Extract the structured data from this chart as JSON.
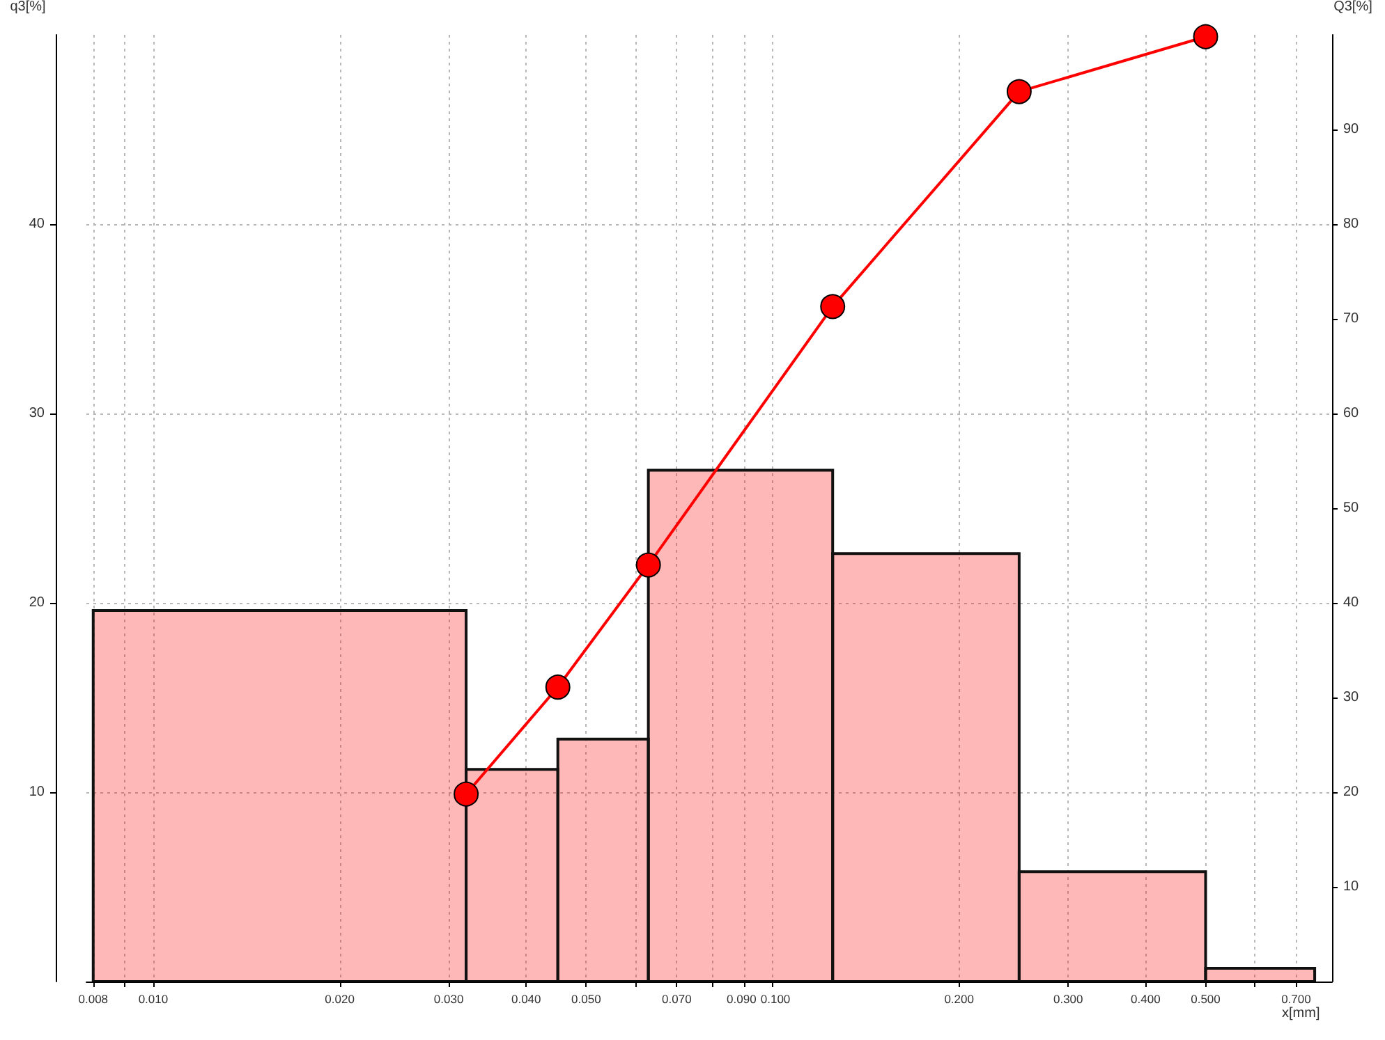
{
  "chart_data": {
    "type": "histogram",
    "xlabel": "x[mm]",
    "ylabel": "q3[%]",
    "y2label": "Q3[%]",
    "series": [
      {
        "type": "histogram",
        "color": "#ff0000",
        "bins": [
          0.008,
          0.032,
          0.045,
          0.063,
          0.125,
          0.25,
          0.5,
          0.75
        ],
        "values": [
          19.6,
          11.2,
          12.8,
          27.0,
          22.6,
          5.8,
          0.7
        ]
      },
      {
        "type": "line",
        "axis": "y2",
        "color": "#ff0000",
        "marker": "circle",
        "x": [
          0.032,
          0.045,
          0.063,
          0.125,
          0.25,
          0.5
        ],
        "values": [
          19.8,
          31.1,
          44.0,
          71.3,
          94.0,
          99.8
        ]
      }
    ],
    "log": "x",
    "xlim": [
      0.0078,
      0.8
    ],
    "xticks": [
      {
        "value": 0.008,
        "label": "0.008"
      },
      {
        "value": 0.009,
        "label": null
      },
      {
        "value": 0.01,
        "label": "0.010"
      },
      {
        "value": 0.02,
        "label": "0.020"
      },
      {
        "value": 0.03,
        "label": "0.030"
      },
      {
        "value": 0.04,
        "label": "0.040"
      },
      {
        "value": 0.05,
        "label": "0.050"
      },
      {
        "value": 0.06,
        "label": null
      },
      {
        "value": 0.07,
        "label": "0.070"
      },
      {
        "value": 0.08,
        "label": null
      },
      {
        "value": 0.09,
        "label": "0.090"
      },
      {
        "value": 0.1,
        "label": "0.100"
      },
      {
        "value": 0.2,
        "label": "0.200"
      },
      {
        "value": 0.3,
        "label": "0.300"
      },
      {
        "value": 0.4,
        "label": "0.400"
      },
      {
        "value": 0.5,
        "label": "0.500"
      },
      {
        "value": 0.6,
        "label": null
      },
      {
        "value": 0.7,
        "label": "0.700"
      }
    ],
    "ylim": [
      0,
      50
    ],
    "yticks": [
      10,
      20,
      30,
      40
    ],
    "y2lim": [
      0,
      100
    ],
    "y2ticks": [
      10,
      20,
      30,
      40,
      50,
      60,
      70,
      80,
      90
    ],
    "grid": true
  }
}
